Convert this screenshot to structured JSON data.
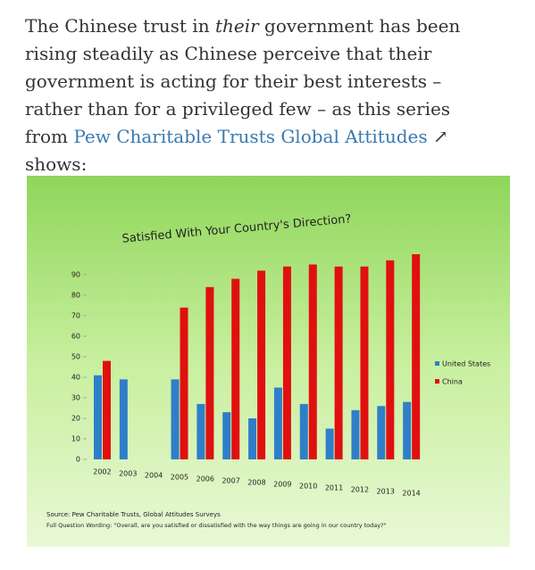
{
  "article": {
    "text_1": "The Chinese trust in ",
    "emphasis": "their",
    "text_2": " government has been rising steadily as Chinese perceive that their government is acting for their best interests – rather than for a privileged few – as this series from ",
    "link": "Pew Charitable Trusts Global Attitudes",
    "text_3": " shows:"
  },
  "chart_data": {
    "type": "bar",
    "title": "Satisfied With Your Country's Direction?",
    "categories": [
      "2002",
      "2003",
      "2004",
      "2005",
      "2006",
      "2007",
      "2008",
      "2009",
      "2010",
      "2011",
      "2012",
      "2013",
      "2014"
    ],
    "series": [
      {
        "name": "United States",
        "color": "#2f7fc8",
        "values": [
          41,
          39,
          null,
          39,
          27,
          23,
          20,
          35,
          27,
          15,
          24,
          26,
          28
        ]
      },
      {
        "name": "China",
        "color": "#e01010",
        "values": [
          48,
          null,
          null,
          74,
          84,
          88,
          92,
          94,
          95,
          94,
          94,
          97,
          100
        ]
      }
    ],
    "ylim": [
      0,
      100
    ],
    "yticks": [
      0,
      10,
      20,
      30,
      40,
      50,
      60,
      70,
      80,
      90
    ],
    "source": "Source: Pew Charitable Trusts, Global Attitudes Surveys",
    "note": "Full Question Wording: \"Overall, are you satisfied or dissatisfied with the way things are going in our country today?\"",
    "legend": "right"
  }
}
